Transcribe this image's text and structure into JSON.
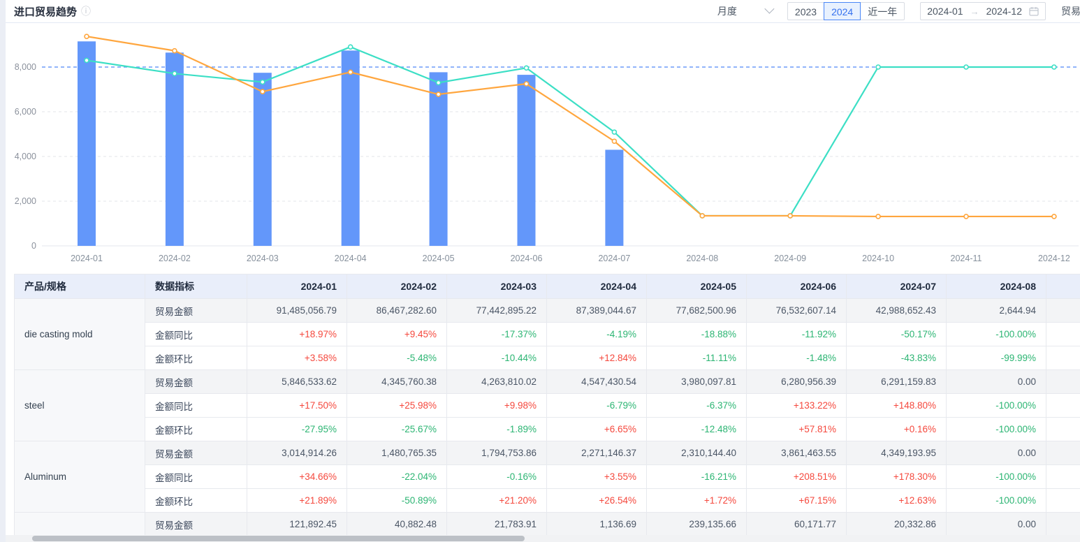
{
  "header": {
    "title": "进口贸易趋势",
    "period_select": {
      "value": "月度"
    },
    "year_tabs": [
      {
        "label": "2023",
        "active": false
      },
      {
        "label": "2024",
        "active": true
      },
      {
        "label": "近一年",
        "active": false
      }
    ],
    "date_range": {
      "start": "2024-01",
      "end": "2024-12"
    },
    "trailing_label": "贸易"
  },
  "colors": {
    "bar": "#6397fa",
    "line_orange": "#ffa63e",
    "line_teal": "#3cdfc5",
    "markline": "#6d9bf8",
    "positive": "#f5483d",
    "negative": "#2cb573",
    "accent": "#3571ee"
  },
  "chart_data": {
    "type": "bar+line",
    "categories": [
      "2024-01",
      "2024-02",
      "2024-03",
      "2024-04",
      "2024-05",
      "2024-06",
      "2024-07",
      "2024-08",
      "2024-09",
      "2024-10",
      "2024-11",
      "2024-12"
    ],
    "yticks": [
      0,
      2000,
      4000,
      6000,
      8000
    ],
    "ylim": [
      0,
      9600
    ],
    "grid": true,
    "legend": "none",
    "markline": {
      "value": 8000,
      "style": "dashed"
    },
    "series": [
      {
        "name": "trade-amount-bars",
        "type": "bar",
        "color": "#6397fa",
        "values": [
          9148.51,
          8646.73,
          7744.29,
          8738.9,
          7768.25,
          7653.26,
          4298.87,
          0.26,
          null,
          null,
          null,
          null
        ]
      },
      {
        "name": "orange-line",
        "type": "line",
        "color": "#ffa63e",
        "values": [
          9370,
          8730,
          6900,
          7770,
          6780,
          7250,
          4680,
          1345,
          1345,
          1315,
          1315,
          1315
        ]
      },
      {
        "name": "teal-line",
        "type": "line",
        "color": "#3cdfc5",
        "values": [
          8300,
          7710,
          7330,
          8900,
          7300,
          7960,
          5090,
          1345,
          1345,
          8000,
          8000,
          8000
        ]
      }
    ]
  },
  "table": {
    "columns": [
      "产品/规格",
      "数据指标",
      "2024-01",
      "2024-02",
      "2024-03",
      "2024-04",
      "2024-05",
      "2024-06",
      "2024-07",
      "2024-08"
    ],
    "groups": [
      {
        "product": "die casting mold",
        "rows": [
          {
            "metric": "贸易金额",
            "kind": "amount",
            "values": [
              "91,485,056.79",
              "86,467,282.60",
              "77,442,895.22",
              "87,389,044.67",
              "77,682,500.96",
              "76,532,607.14",
              "42,988,652.43",
              "2,644.94"
            ]
          },
          {
            "metric": "金额同比",
            "kind": "percent",
            "values": [
              "+18.97%",
              "+9.45%",
              "-17.37%",
              "-4.19%",
              "-18.88%",
              "-11.92%",
              "-50.17%",
              "-100.00%"
            ]
          },
          {
            "metric": "金额环比",
            "kind": "percent",
            "values": [
              "+3.58%",
              "-5.48%",
              "-10.44%",
              "+12.84%",
              "-11.11%",
              "-1.48%",
              "-43.83%",
              "-99.99%"
            ]
          }
        ]
      },
      {
        "product": "steel",
        "rows": [
          {
            "metric": "贸易金额",
            "kind": "amount",
            "values": [
              "5,846,533.62",
              "4,345,760.38",
              "4,263,810.02",
              "4,547,430.54",
              "3,980,097.81",
              "6,280,956.39",
              "6,291,159.83",
              "0.00"
            ]
          },
          {
            "metric": "金额同比",
            "kind": "percent",
            "values": [
              "+17.50%",
              "+25.98%",
              "+9.98%",
              "-6.79%",
              "-6.37%",
              "+133.22%",
              "+148.80%",
              "-100.00%"
            ]
          },
          {
            "metric": "金额环比",
            "kind": "percent",
            "values": [
              "-27.95%",
              "-25.67%",
              "-1.89%",
              "+6.65%",
              "-12.48%",
              "+57.81%",
              "+0.16%",
              "-100.00%"
            ]
          }
        ]
      },
      {
        "product": "Aluminum",
        "rows": [
          {
            "metric": "贸易金额",
            "kind": "amount",
            "values": [
              "3,014,914.26",
              "1,480,765.35",
              "1,794,753.86",
              "2,271,146.37",
              "2,310,144.40",
              "3,861,463.55",
              "4,349,193.95",
              "0.00"
            ]
          },
          {
            "metric": "金额同比",
            "kind": "percent",
            "values": [
              "+34.66%",
              "-22.04%",
              "-0.16%",
              "+3.55%",
              "-16.21%",
              "+208.51%",
              "+178.30%",
              "-100.00%"
            ]
          },
          {
            "metric": "金额环比",
            "kind": "percent",
            "values": [
              "+21.89%",
              "-50.89%",
              "+21.20%",
              "+26.54%",
              "+1.72%",
              "+67.15%",
              "+12.63%",
              "-100.00%"
            ]
          }
        ]
      },
      {
        "product": "",
        "rows": [
          {
            "metric": "贸易金额",
            "kind": "amount",
            "values": [
              "121,892.45",
              "40,882.48",
              "21,783.91",
              "1,136.69",
              "239,135.66",
              "60,171.77",
              "20,332.86",
              "0.00"
            ]
          }
        ]
      }
    ]
  }
}
